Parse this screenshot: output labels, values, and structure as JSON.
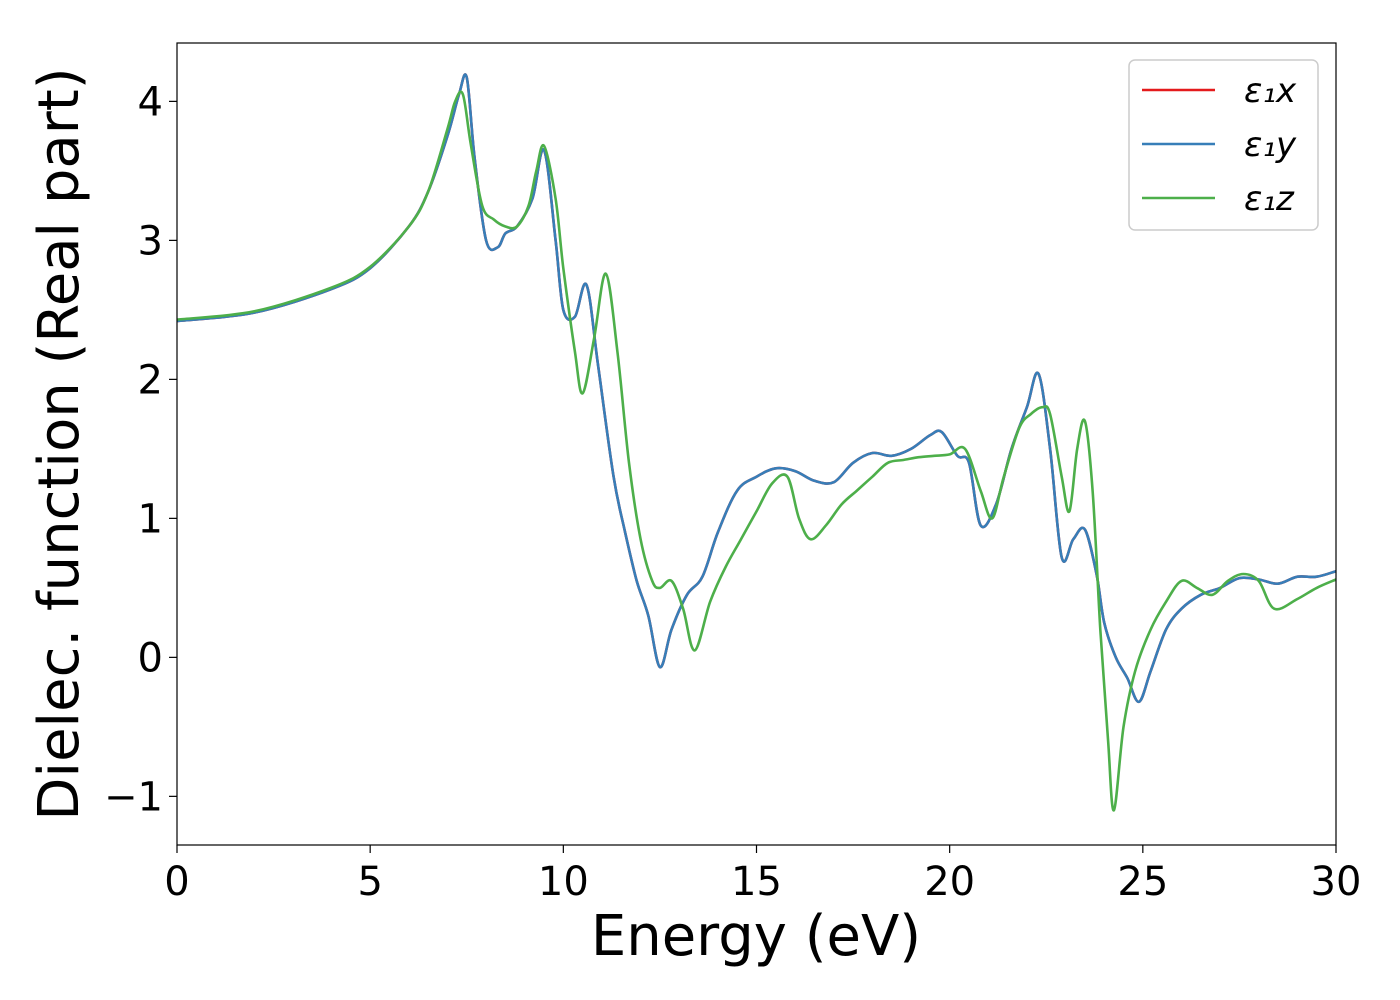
{
  "chart_data": {
    "type": "line",
    "xlabel": "Energy (eV)",
    "ylabel": "Dielec. function (Real part)",
    "xlim": [
      0,
      30
    ],
    "ylim": [
      -1.35,
      4.42
    ],
    "xticks": [
      0,
      5,
      10,
      15,
      20,
      25,
      30
    ],
    "yticks": [
      -1,
      0,
      1,
      2,
      3,
      4
    ],
    "xtick_labels": [
      "0",
      "5",
      "10",
      "15",
      "20",
      "25",
      "30"
    ],
    "ytick_labels": [
      "−1",
      "0",
      "1",
      "2",
      "3",
      "4"
    ],
    "grid": false,
    "legend_position": "top-right",
    "series": [
      {
        "name": "ε₁x",
        "color": "#e41a1c",
        "x": [
          0,
          2,
          4,
          5,
          6,
          6.5,
          7,
          7.3,
          7.5,
          7.7,
          8.0,
          8.3,
          8.5,
          8.8,
          9.2,
          9.5,
          9.8,
          10.0,
          10.3,
          10.6,
          10.9,
          11.3,
          11.6,
          11.9,
          12.2,
          12.5,
          12.8,
          13.2,
          13.6,
          14.0,
          14.5,
          15.0,
          15.5,
          16.0,
          16.5,
          17.0,
          17.5,
          18.0,
          18.5,
          19.0,
          19.5,
          19.8,
          20.2,
          20.5,
          20.8,
          21.2,
          21.6,
          22.0,
          22.3,
          22.6,
          22.9,
          23.2,
          23.5,
          23.8,
          24.0,
          24.3,
          24.6,
          24.9,
          25.2,
          25.6,
          26.0,
          26.5,
          27.0,
          27.5,
          28.0,
          28.5,
          29.0,
          29.5,
          30.0
        ],
        "values": [
          2.42,
          2.48,
          2.65,
          2.8,
          3.1,
          3.35,
          3.75,
          4.05,
          4.17,
          3.6,
          3.0,
          2.95,
          3.05,
          3.1,
          3.3,
          3.65,
          3.0,
          2.5,
          2.45,
          2.68,
          2.1,
          1.3,
          0.9,
          0.55,
          0.3,
          -0.07,
          0.2,
          0.45,
          0.58,
          0.9,
          1.2,
          1.3,
          1.36,
          1.34,
          1.27,
          1.26,
          1.4,
          1.47,
          1.45,
          1.5,
          1.6,
          1.62,
          1.45,
          1.4,
          0.95,
          1.1,
          1.5,
          1.8,
          2.04,
          1.5,
          0.72,
          0.85,
          0.92,
          0.6,
          0.25,
          0.0,
          -0.15,
          -0.32,
          -0.1,
          0.2,
          0.35,
          0.45,
          0.5,
          0.57,
          0.56,
          0.53,
          0.58,
          0.58,
          0.62
        ]
      },
      {
        "name": "ε₁y",
        "color": "#377eb8",
        "x": [
          0,
          2,
          4,
          5,
          6,
          6.5,
          7,
          7.3,
          7.5,
          7.7,
          8.0,
          8.3,
          8.5,
          8.8,
          9.2,
          9.5,
          9.8,
          10.0,
          10.3,
          10.6,
          10.9,
          11.3,
          11.6,
          11.9,
          12.2,
          12.5,
          12.8,
          13.2,
          13.6,
          14.0,
          14.5,
          15.0,
          15.5,
          16.0,
          16.5,
          17.0,
          17.5,
          18.0,
          18.5,
          19.0,
          19.5,
          19.8,
          20.2,
          20.5,
          20.8,
          21.2,
          21.6,
          22.0,
          22.3,
          22.6,
          22.9,
          23.2,
          23.5,
          23.8,
          24.0,
          24.3,
          24.6,
          24.9,
          25.2,
          25.6,
          26.0,
          26.5,
          27.0,
          27.5,
          28.0,
          28.5,
          29.0,
          29.5,
          30.0
        ],
        "values": [
          2.42,
          2.48,
          2.65,
          2.8,
          3.1,
          3.35,
          3.75,
          4.05,
          4.17,
          3.6,
          3.0,
          2.95,
          3.05,
          3.1,
          3.3,
          3.65,
          3.0,
          2.5,
          2.45,
          2.68,
          2.1,
          1.3,
          0.9,
          0.55,
          0.3,
          -0.07,
          0.2,
          0.45,
          0.58,
          0.9,
          1.2,
          1.3,
          1.36,
          1.34,
          1.27,
          1.26,
          1.4,
          1.47,
          1.45,
          1.5,
          1.6,
          1.62,
          1.45,
          1.4,
          0.95,
          1.1,
          1.5,
          1.8,
          2.04,
          1.5,
          0.72,
          0.85,
          0.92,
          0.6,
          0.25,
          0.0,
          -0.15,
          -0.32,
          -0.1,
          0.2,
          0.35,
          0.45,
          0.5,
          0.57,
          0.56,
          0.53,
          0.58,
          0.58,
          0.62
        ]
      },
      {
        "name": "ε₁z",
        "color": "#4daf4a",
        "x": [
          0,
          2,
          4,
          5,
          6,
          6.5,
          7,
          7.2,
          7.4,
          7.6,
          7.9,
          8.2,
          8.5,
          8.8,
          9.1,
          9.3,
          9.5,
          9.8,
          10.0,
          10.3,
          10.5,
          10.8,
          11.1,
          11.4,
          11.7,
          12.0,
          12.3,
          12.5,
          12.8,
          13.1,
          13.4,
          13.8,
          14.2,
          14.6,
          15.0,
          15.4,
          15.8,
          16.1,
          16.4,
          16.8,
          17.2,
          17.6,
          18.0,
          18.4,
          18.8,
          19.2,
          19.6,
          20.0,
          20.4,
          20.8,
          21.1,
          21.4,
          21.8,
          22.1,
          22.4,
          22.6,
          22.9,
          23.1,
          23.3,
          23.5,
          23.7,
          23.9,
          24.1,
          24.25,
          24.5,
          24.8,
          25.2,
          25.6,
          26.0,
          26.4,
          26.8,
          27.2,
          27.6,
          28.0,
          28.4,
          29.0,
          29.5,
          30.0
        ],
        "values": [
          2.43,
          2.49,
          2.66,
          2.81,
          3.1,
          3.35,
          3.8,
          4.0,
          4.05,
          3.7,
          3.25,
          3.15,
          3.1,
          3.1,
          3.25,
          3.5,
          3.68,
          3.3,
          2.8,
          2.2,
          1.9,
          2.3,
          2.76,
          2.2,
          1.4,
          0.85,
          0.55,
          0.5,
          0.55,
          0.35,
          0.05,
          0.4,
          0.65,
          0.85,
          1.05,
          1.25,
          1.3,
          1.0,
          0.85,
          0.95,
          1.1,
          1.2,
          1.3,
          1.4,
          1.42,
          1.44,
          1.45,
          1.46,
          1.5,
          1.2,
          1.0,
          1.3,
          1.65,
          1.75,
          1.8,
          1.75,
          1.3,
          1.05,
          1.5,
          1.7,
          1.2,
          0.2,
          -0.6,
          -1.1,
          -0.5,
          -0.1,
          0.2,
          0.4,
          0.55,
          0.5,
          0.45,
          0.55,
          0.6,
          0.55,
          0.35,
          0.42,
          0.5,
          0.56
        ]
      }
    ]
  }
}
